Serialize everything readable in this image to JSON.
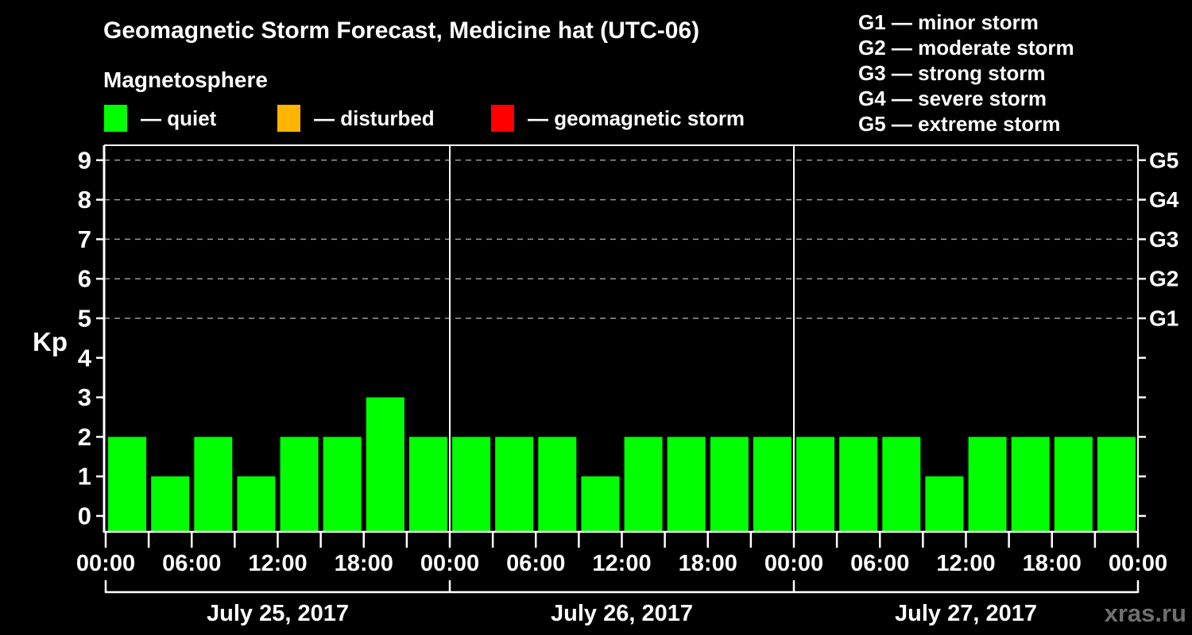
{
  "header": {
    "title": "Geomagnetic Storm Forecast, Medicine hat (UTC-06)",
    "subtitle": "Magnetosphere",
    "watermark": "xras.ru"
  },
  "colors": {
    "background": "#000000",
    "text": "#ffffff",
    "axis": "#ffffff",
    "grid": "#9a9a9a",
    "watermark_text": "#6f6f6f",
    "quiet_green": "#00ff00",
    "disturbed_orange": "#ffb400",
    "storm_red": "#ff0000"
  },
  "legend": {
    "items": [
      {
        "name": "quiet",
        "label": "— quiet",
        "color": "#00ff00"
      },
      {
        "name": "disturbed",
        "label": "— disturbed",
        "color": "#ffb400"
      },
      {
        "name": "geomagnetic-storm",
        "label": "— geomagnetic storm",
        "color": "#ff0000"
      }
    ]
  },
  "storm_scale": {
    "items": [
      "G1 — minor storm",
      "G2 — moderate storm",
      "G3 — strong storm",
      "G4 — severe storm",
      "G5 — extreme storm"
    ]
  },
  "chart_data": {
    "type": "bar",
    "title": "Geomagnetic Storm Forecast, Medicine hat (UTC-06)",
    "ylabel": "Kp",
    "ylim": [
      0,
      9
    ],
    "y_ticks": [
      0,
      1,
      2,
      3,
      4,
      5,
      6,
      7,
      8,
      9
    ],
    "gridlines_at_kp": [
      5,
      6,
      7,
      8,
      9
    ],
    "grid": "dashed horizontal at storm levels only",
    "legend_position": "top-left",
    "right_axis": [
      {
        "kp": 5,
        "label": "G1"
      },
      {
        "kp": 6,
        "label": "G2"
      },
      {
        "kp": 7,
        "label": "G3"
      },
      {
        "kp": 8,
        "label": "G4"
      },
      {
        "kp": 9,
        "label": "G5"
      }
    ],
    "interval_hours": 3,
    "x_tick_every_hours": 3,
    "x_tick_labels": [
      "00:00",
      "06:00",
      "12:00",
      "18:00",
      "00:00",
      "06:00",
      "12:00",
      "18:00",
      "00:00",
      "06:00",
      "12:00",
      "18:00",
      "00:00"
    ],
    "days": [
      {
        "date": "July 25, 2017",
        "kp_values": [
          2,
          1,
          2,
          1,
          2,
          2,
          3,
          2
        ]
      },
      {
        "date": "July 26, 2017",
        "kp_values": [
          2,
          2,
          2,
          1,
          2,
          2,
          2,
          2
        ]
      },
      {
        "date": "July 27, 2017",
        "kp_values": [
          2,
          2,
          2,
          1,
          2,
          2,
          2,
          2
        ]
      }
    ],
    "bar_color": "#00ff00"
  }
}
